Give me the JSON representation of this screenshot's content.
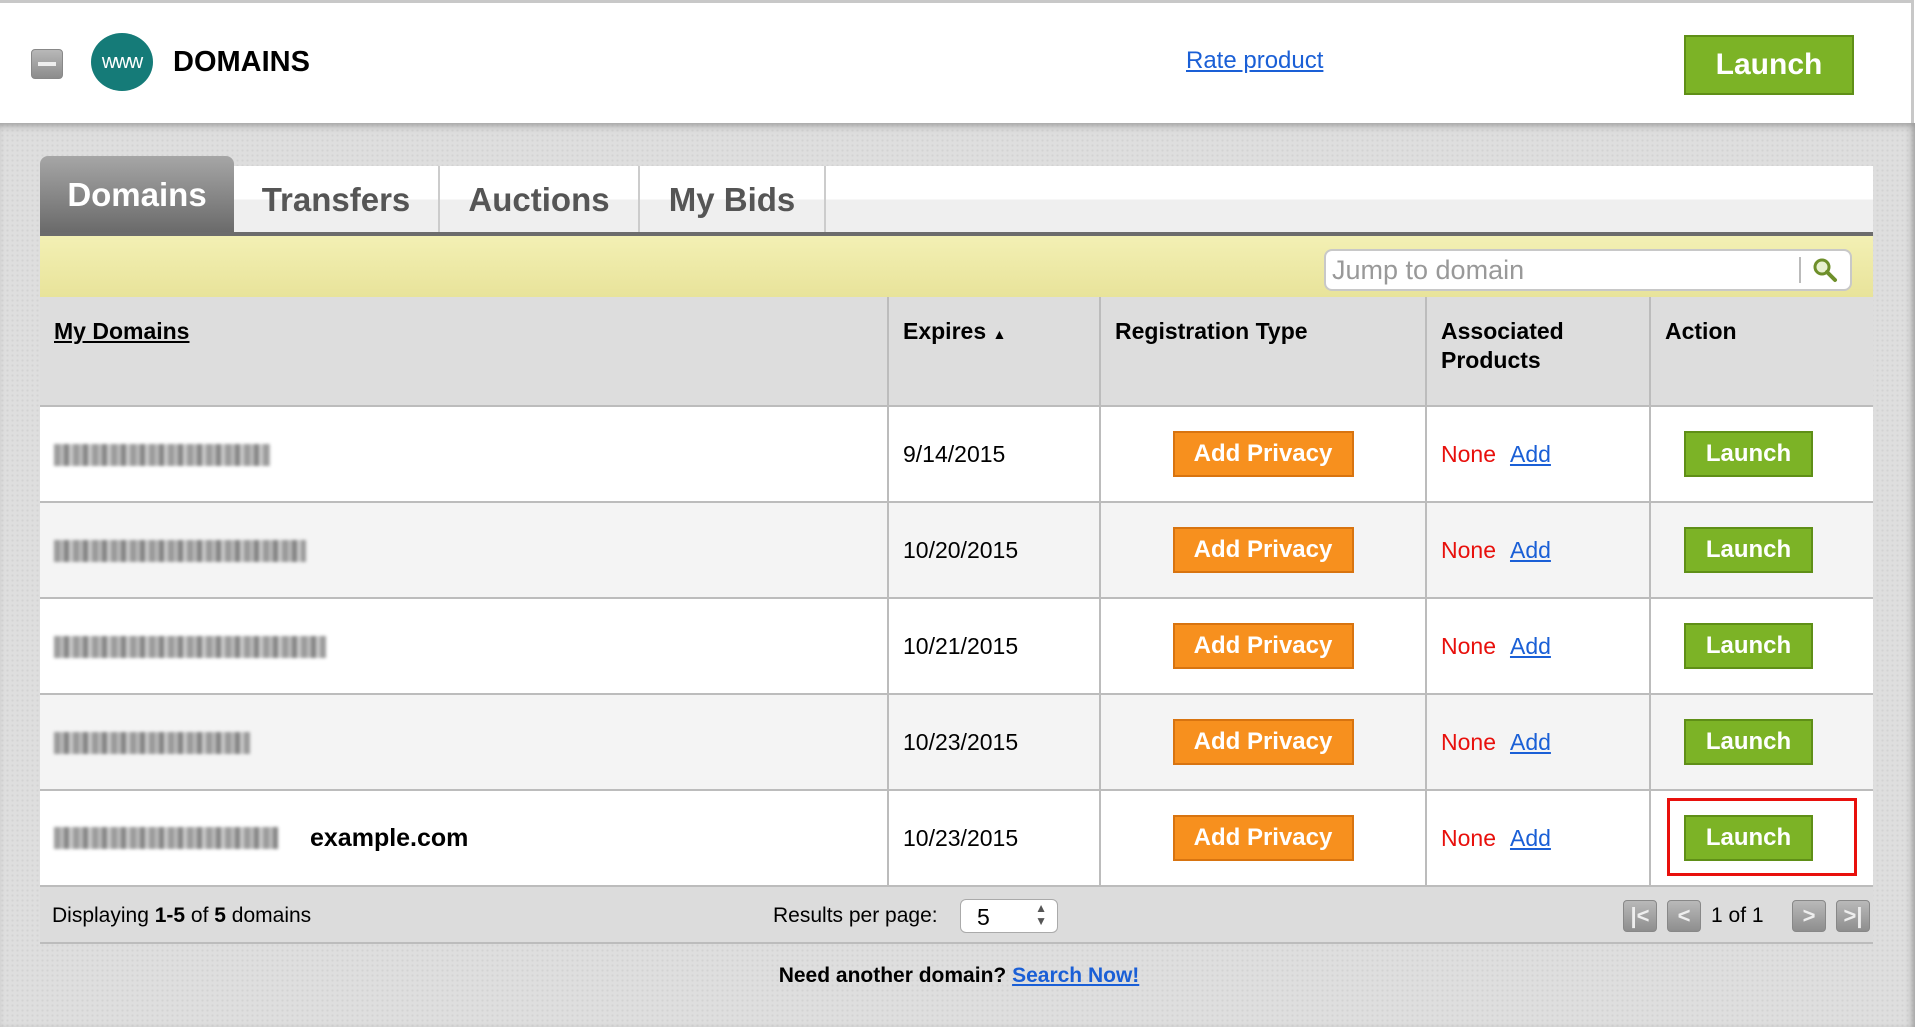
{
  "header": {
    "title": "DOMAINS",
    "logo_text": "www",
    "rate_link": "Rate product",
    "launch_label": "Launch"
  },
  "tabs": [
    {
      "label": "Domains",
      "active": true
    },
    {
      "label": "Transfers"
    },
    {
      "label": "Auctions"
    },
    {
      "label": "My Bids"
    }
  ],
  "search": {
    "placeholder": "Jump to domain",
    "icon": "search-icon"
  },
  "table": {
    "columns": [
      "My Domains",
      "Expires",
      "Registration Type",
      "Associated Products",
      "Action"
    ],
    "sort_indicator": "▲",
    "rows": [
      {
        "domain_note": "",
        "expires": "9/14/2015",
        "registration": "Add Privacy",
        "products": "None",
        "add": "Add",
        "action": "Launch"
      },
      {
        "domain_note": "",
        "expires": "10/20/2015",
        "registration": "Add Privacy",
        "products": "None",
        "add": "Add",
        "action": "Launch"
      },
      {
        "domain_note": "",
        "expires": "10/21/2015",
        "registration": "Add Privacy",
        "products": "None",
        "add": "Add",
        "action": "Launch"
      },
      {
        "domain_note": "",
        "expires": "10/23/2015",
        "registration": "Add Privacy",
        "products": "None",
        "add": "Add",
        "action": "Launch"
      },
      {
        "domain_note": "example.com",
        "expires": "10/23/2015",
        "registration": "Add Privacy",
        "products": "None",
        "add": "Add",
        "action": "Launch",
        "highlighted": true
      }
    ]
  },
  "footer": {
    "displaying_prefix": "Displaying ",
    "range": "1-5",
    "of": " of ",
    "total": "5",
    "suffix": " domains",
    "results_per_page_label": "Results per page:",
    "results_per_page": "5",
    "page_text": "1 of 1"
  },
  "bottom": {
    "question": "Need another domain?",
    "link": "Search Now!"
  },
  "colors": {
    "launch_green": "#7cb326",
    "privacy_orange": "#f7901e",
    "none_red": "#e8100c",
    "link_blue": "#1a5fd6",
    "highlight_red": "#e8100c"
  }
}
